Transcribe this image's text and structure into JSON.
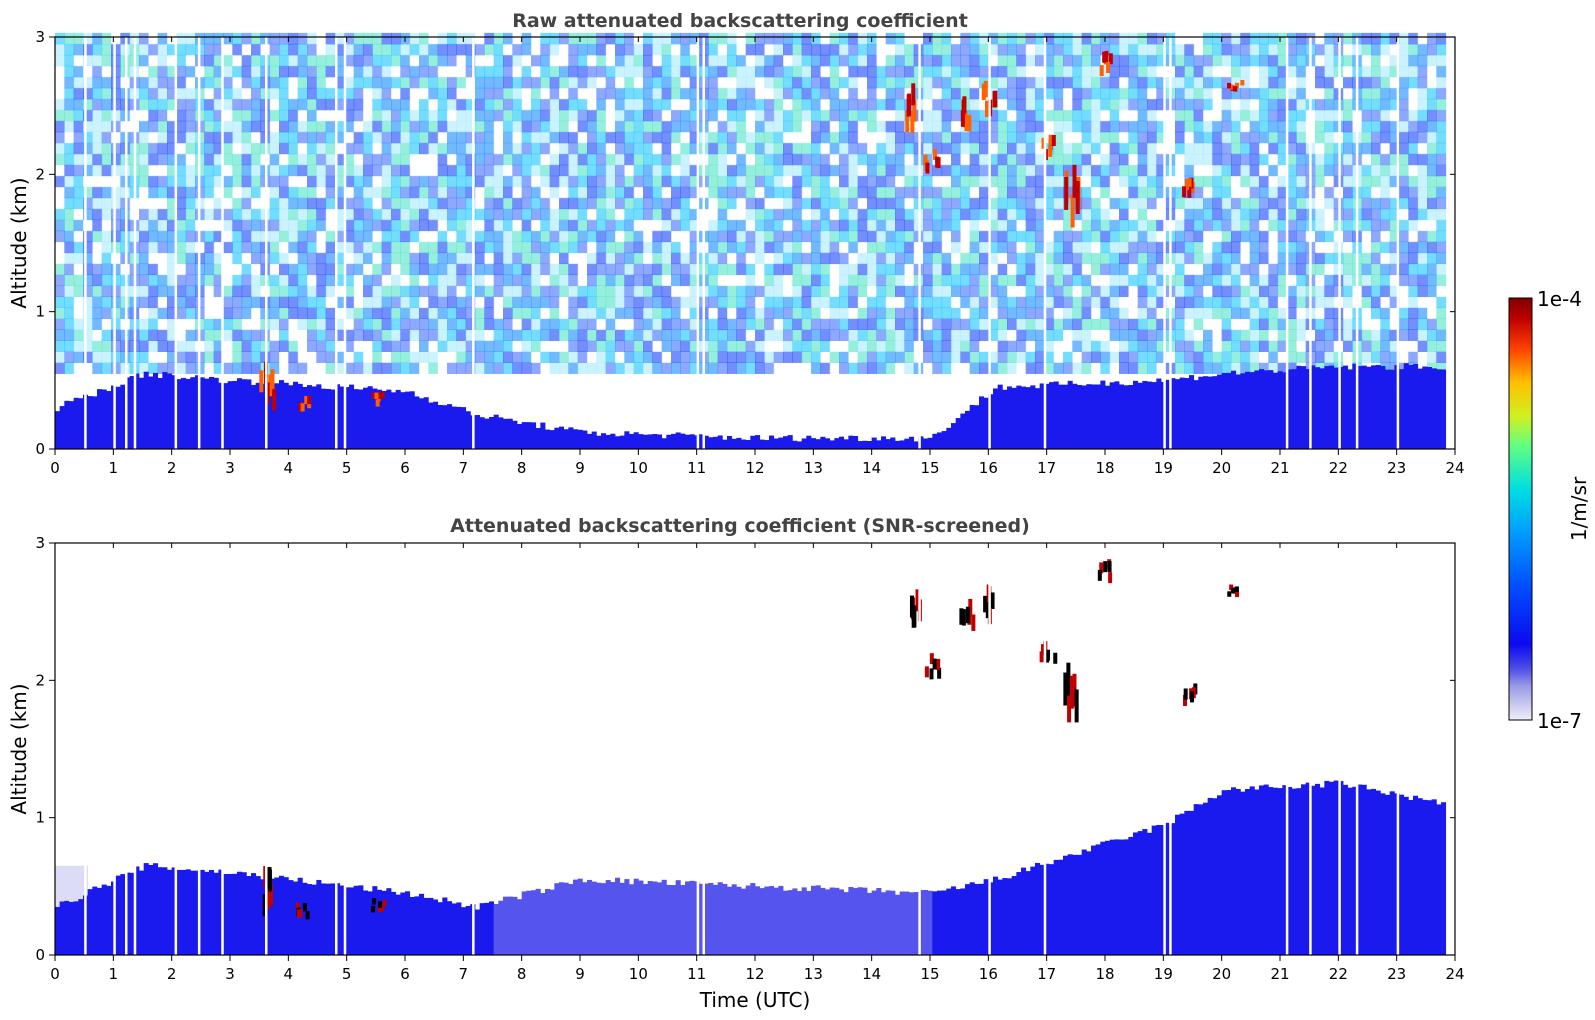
{
  "chart_data": [
    {
      "type": "heatmap",
      "title": "Raw attenuated backscattering coefficient",
      "xlabel": "",
      "ylabel": "Altitude (km)",
      "xlim": [
        0,
        24
      ],
      "ylim": [
        0,
        3
      ],
      "xticks": [
        "0",
        "1",
        "2",
        "3",
        "4",
        "5",
        "6",
        "7",
        "8",
        "9",
        "10",
        "11",
        "12",
        "13",
        "14",
        "15",
        "16",
        "17",
        "18",
        "19",
        "20",
        "21",
        "22",
        "23",
        "24"
      ],
      "yticks": [
        "0",
        "1",
        "2",
        "3"
      ],
      "layers": [
        {
          "name": "boundary layer",
          "x_start": [
            0,
            1.5,
            3,
            6,
            7.2,
            9,
            12,
            15,
            16.1,
            19,
            20,
            22,
            23.8
          ],
          "top_km": [
            0.3,
            0.55,
            0.5,
            0.42,
            0.25,
            0.12,
            0.08,
            0.08,
            0.45,
            0.5,
            0.55,
            0.6,
            0.6
          ]
        }
      ],
      "clouds": [
        {
          "x": 3.6,
          "y0": 0.25,
          "y1": 0.65
        },
        {
          "x": 4.2,
          "y0": 0.25,
          "y1": 0.4
        },
        {
          "x": 5.5,
          "y0": 0.3,
          "y1": 0.42
        },
        {
          "x": 14.7,
          "y0": 2.3,
          "y1": 2.7
        },
        {
          "x": 15.0,
          "y0": 2.0,
          "y1": 2.2
        },
        {
          "x": 15.6,
          "y0": 2.3,
          "y1": 2.6
        },
        {
          "x": 16.0,
          "y0": 2.4,
          "y1": 2.7
        },
        {
          "x": 17.0,
          "y0": 2.1,
          "y1": 2.3
        },
        {
          "x": 17.4,
          "y0": 1.6,
          "y1": 2.2
        },
        {
          "x": 18.0,
          "y0": 2.7,
          "y1": 2.9
        },
        {
          "x": 19.4,
          "y0": 1.8,
          "y1": 2.0
        },
        {
          "x": 20.2,
          "y0": 2.6,
          "y1": 2.7
        }
      ]
    },
    {
      "type": "heatmap",
      "title": "Attenuated backscattering coefficient (SNR-screened)",
      "xlabel": "Time (UTC)",
      "ylabel": "Altitude (km)",
      "xlim": [
        0,
        24
      ],
      "ylim": [
        0,
        3
      ],
      "xticks": [
        "0",
        "1",
        "2",
        "3",
        "4",
        "5",
        "6",
        "7",
        "8",
        "9",
        "10",
        "11",
        "12",
        "13",
        "14",
        "15",
        "16",
        "17",
        "18",
        "19",
        "20",
        "21",
        "22",
        "23",
        "24"
      ],
      "yticks": [
        "0",
        "1",
        "2",
        "3"
      ],
      "layers": [
        {
          "name": "boundary layer",
          "x_start": [
            0,
            1.5,
            3,
            6,
            7.2,
            9,
            12,
            15,
            16.1,
            19,
            20,
            22,
            23.8
          ],
          "top_km": [
            0.35,
            0.65,
            0.6,
            0.45,
            0.35,
            0.55,
            0.5,
            0.45,
            0.55,
            0.95,
            1.2,
            1.25,
            1.1
          ]
        }
      ],
      "clouds": [
        {
          "x": 3.6,
          "y0": 0.25,
          "y1": 0.65
        },
        {
          "x": 4.2,
          "y0": 0.25,
          "y1": 0.4
        },
        {
          "x": 5.5,
          "y0": 0.3,
          "y1": 0.42
        },
        {
          "x": 14.7,
          "y0": 2.3,
          "y1": 2.7
        },
        {
          "x": 15.0,
          "y0": 2.0,
          "y1": 2.2
        },
        {
          "x": 15.6,
          "y0": 2.3,
          "y1": 2.6
        },
        {
          "x": 16.0,
          "y0": 2.4,
          "y1": 2.7
        },
        {
          "x": 17.0,
          "y0": 2.1,
          "y1": 2.3
        },
        {
          "x": 17.4,
          "y0": 1.6,
          "y1": 2.2
        },
        {
          "x": 18.0,
          "y0": 2.7,
          "y1": 2.9
        },
        {
          "x": 19.4,
          "y0": 1.8,
          "y1": 2.0
        },
        {
          "x": 20.2,
          "y0": 2.6,
          "y1": 2.7
        }
      ]
    }
  ],
  "colorbar": {
    "max_label": "1e-4",
    "min_label": "1e-7",
    "unit_label": "1/m/sr",
    "scale": "log",
    "colormap": [
      "#e8e8f8",
      "#c6c6ee",
      "#9a9ae6",
      "#5050e8",
      "#0a0aef",
      "#0040ff",
      "#0080ff",
      "#00bfff",
      "#00e5d0",
      "#40ff90",
      "#a0ff40",
      "#f0f000",
      "#ffa000",
      "#ff4000",
      "#d00000",
      "#800000"
    ]
  }
}
